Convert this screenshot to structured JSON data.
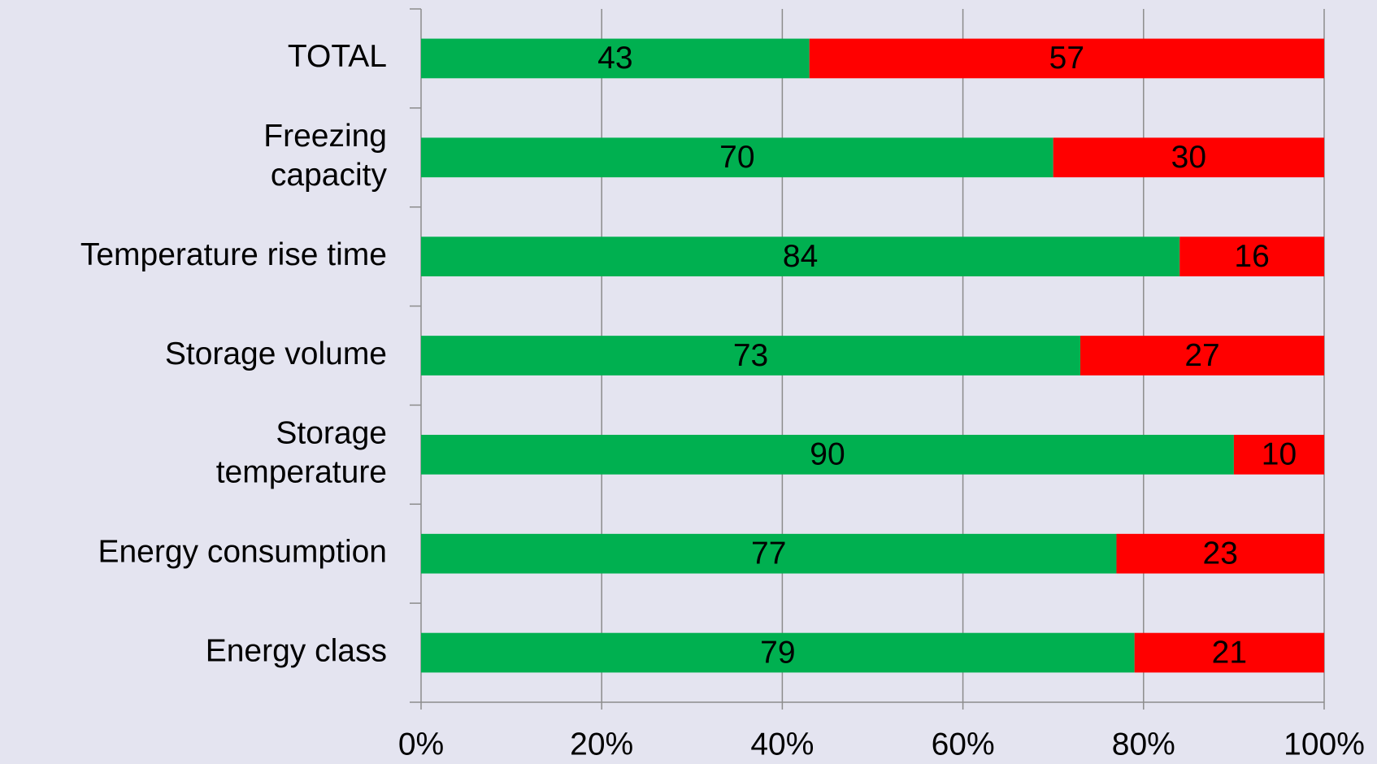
{
  "chart_data": {
    "type": "stacked_bar_horizontal",
    "categories": [
      "TOTAL",
      "Freezing\ncapacity",
      "Temperature rise time",
      "Storage volume",
      "Storage\ntemperature",
      "Energy consumption",
      "Energy class"
    ],
    "series": [
      {
        "color": "#00b050",
        "values": [
          43,
          70,
          84,
          73,
          90,
          77,
          79
        ]
      },
      {
        "color": "#ff0000",
        "values": [
          57,
          30,
          16,
          27,
          10,
          23,
          21
        ]
      }
    ],
    "xlim": [
      0,
      100
    ],
    "xticks": [
      {
        "value": 0,
        "label": "0%"
      },
      {
        "value": 20,
        "label": "20%"
      },
      {
        "value": 40,
        "label": "40%"
      },
      {
        "value": 60,
        "label": "60%"
      },
      {
        "value": 80,
        "label": "80%"
      },
      {
        "value": 100,
        "label": "100%"
      }
    ],
    "grid": true
  }
}
